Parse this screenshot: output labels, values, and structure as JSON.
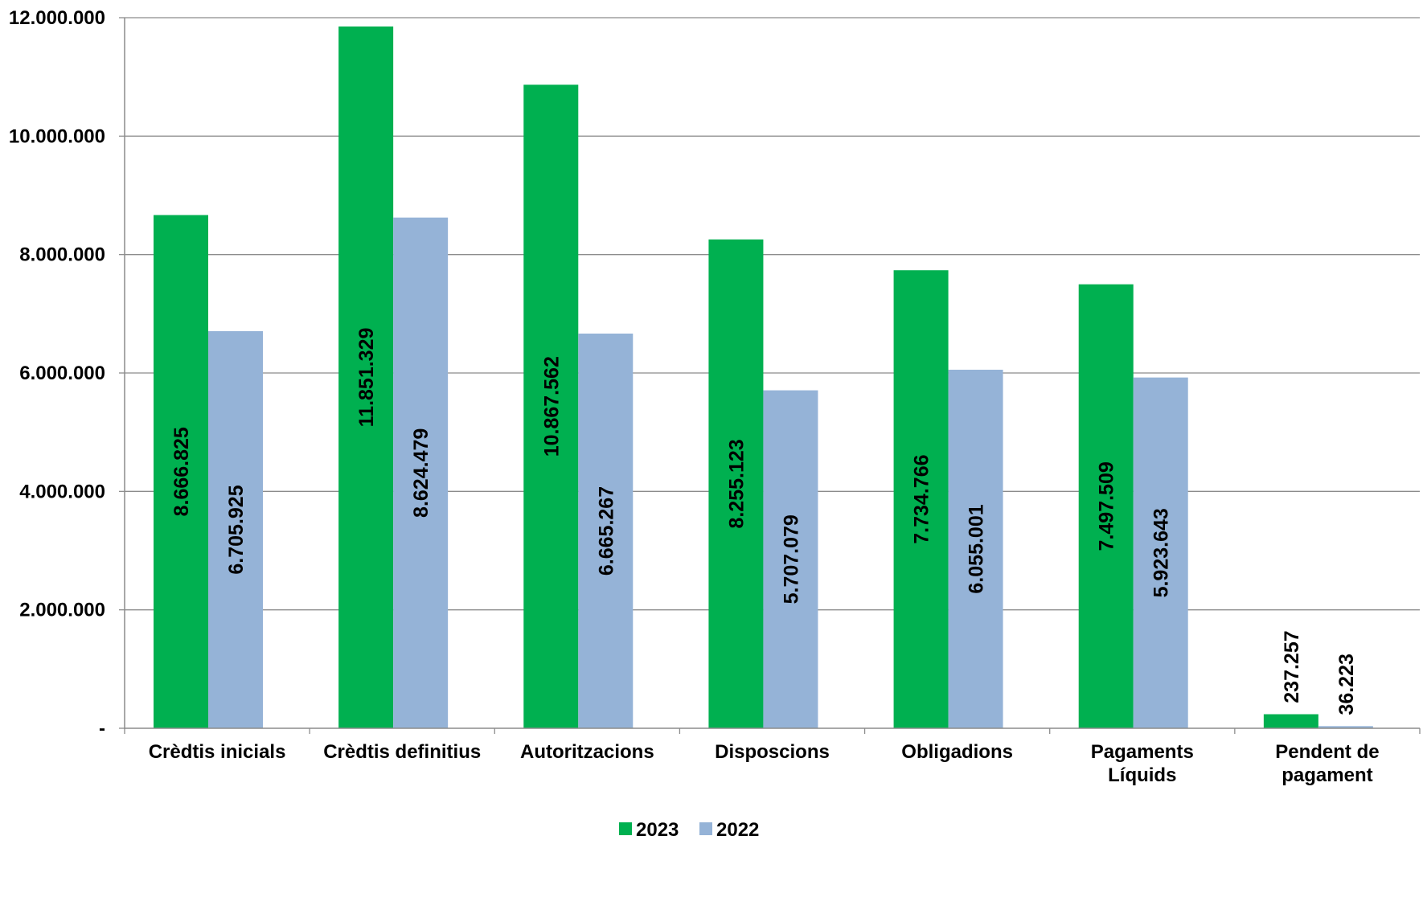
{
  "chart_data": {
    "type": "bar",
    "categories": [
      [
        "Crèdtis inicials"
      ],
      [
        "Crèdtis definitius"
      ],
      [
        "Autoritzacions"
      ],
      [
        "Disposcions"
      ],
      [
        "Obligadions"
      ],
      [
        "Pagaments",
        "Líquids"
      ],
      [
        "Pendent de",
        "pagament"
      ]
    ],
    "series": [
      {
        "name": "2023",
        "color": "#00B050",
        "values": [
          8666825,
          11851329,
          10867562,
          8255123,
          7734766,
          7497509,
          237257
        ],
        "labels": [
          "8.666.825",
          "11.851.329",
          "10.867.562",
          "8.255.123",
          "7.734.766",
          "7.497.509",
          "237.257"
        ]
      },
      {
        "name": "2022",
        "color": "#95B3D7",
        "values": [
          6705925,
          8624479,
          6665267,
          5707079,
          6055001,
          5923643,
          36223
        ],
        "labels": [
          "6.705.925",
          "8.624.479",
          "6.665.267",
          "5.707.079",
          "6.055.001",
          "5.923.643",
          "36.223"
        ]
      }
    ],
    "ylim": [
      0,
      12000000
    ],
    "yticks": [
      {
        "value": 0,
        "label": "-"
      },
      {
        "value": 2000000,
        "label": "2.000.000"
      },
      {
        "value": 4000000,
        "label": "4.000.000"
      },
      {
        "value": 6000000,
        "label": "6.000.000"
      },
      {
        "value": 8000000,
        "label": "8.000.000"
      },
      {
        "value": 10000000,
        "label": "10.000.000"
      },
      {
        "value": 12000000,
        "label": "12.000.000"
      }
    ],
    "grid": true,
    "legend_position": "bottom",
    "title": "",
    "xlabel": "",
    "ylabel": ""
  }
}
